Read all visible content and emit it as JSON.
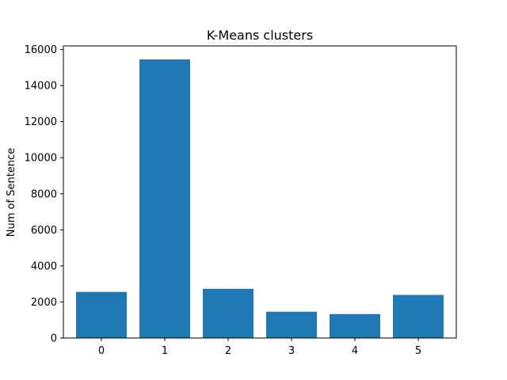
{
  "chart_data": {
    "type": "bar",
    "title": "K-Means clusters",
    "xlabel": "",
    "ylabel": "Num of Sentence",
    "categories": [
      "0",
      "1",
      "2",
      "3",
      "4",
      "5"
    ],
    "values": [
      2560,
      15450,
      2730,
      1460,
      1330,
      2390
    ],
    "ylim": [
      0,
      16200
    ],
    "yticks": [
      0,
      2000,
      4000,
      6000,
      8000,
      10000,
      12000,
      14000,
      16000
    ],
    "grid": false,
    "legend": "none",
    "colors": {
      "bar": "#1f77b4",
      "axis": "#000000"
    }
  }
}
